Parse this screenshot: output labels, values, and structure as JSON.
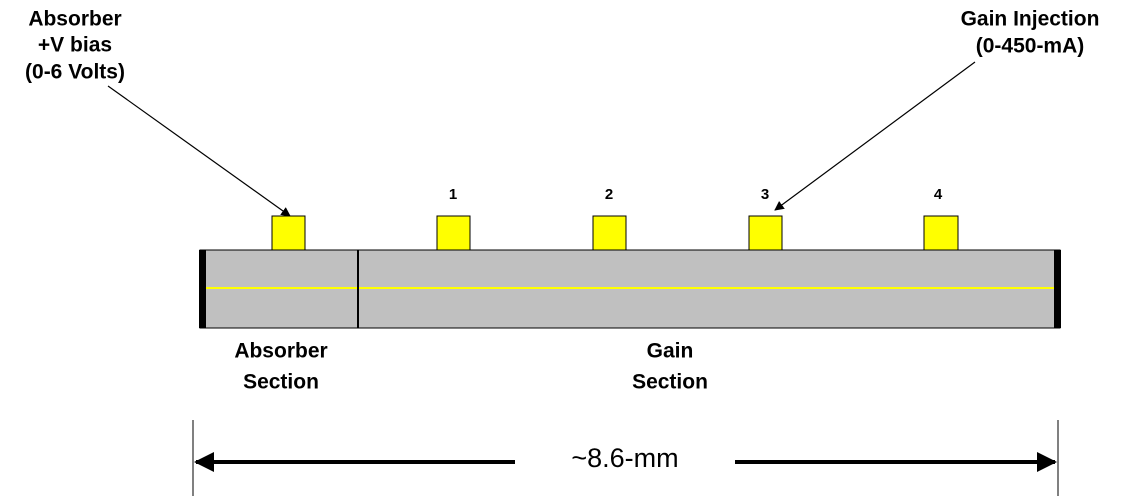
{
  "labels": {
    "absorber_bias": [
      "Absorber",
      "+V bias",
      "(0-6 Volts)"
    ],
    "gain_injection": [
      "Gain Injection",
      "(0-450-mA)"
    ]
  },
  "contacts": [
    "1",
    "2",
    "3",
    "4"
  ],
  "sections": {
    "absorber": [
      "Absorber",
      "Section"
    ],
    "gain": [
      "Gain",
      "Section"
    ]
  },
  "dimension": "~8.6-mm"
}
